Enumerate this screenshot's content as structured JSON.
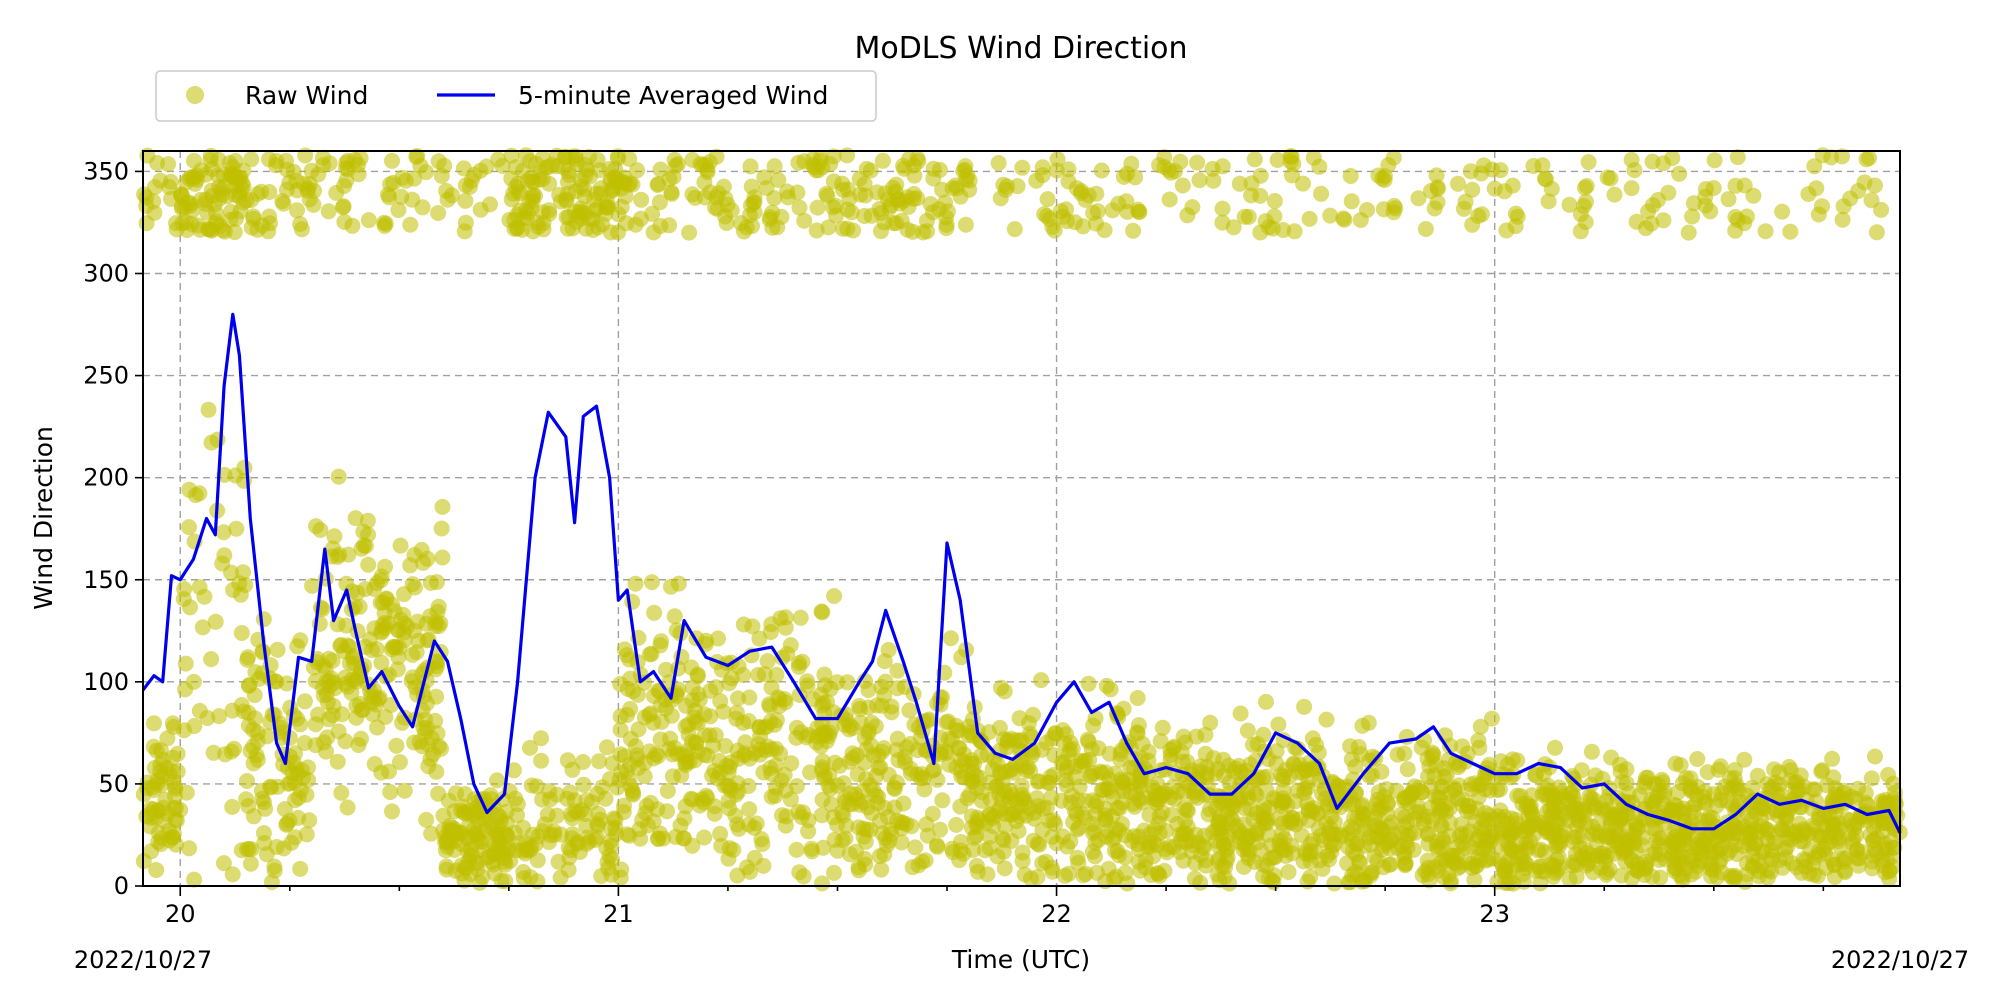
{
  "chart_data": {
    "type": "scatter",
    "title": "MoDLS Wind Direction",
    "xlabel": "Time (UTC)",
    "ylabel": "Wind Direction",
    "xlim": [
      19.915,
      23.925
    ],
    "ylim": [
      0,
      360
    ],
    "x_tick_values": [
      20,
      21,
      22,
      23
    ],
    "x_tick_labels": [
      "20",
      "21",
      "22",
      "23"
    ],
    "x_minor_step": 0.25,
    "y_ticks": [
      0,
      50,
      100,
      150,
      200,
      250,
      300,
      350
    ],
    "date_left": "2022/10/27",
    "date_right": "2022/10/27",
    "grid": true,
    "legend": {
      "placement": "top-left, outside above axes",
      "ncol": 2
    },
    "colors": {
      "raw": "#bfbf00",
      "avg": "#0000ee"
    },
    "series": [
      {
        "name": "Raw Wind",
        "kind": "scatter",
        "regimes": [
          {
            "x": [
              19.915,
              20.0
            ],
            "low_center": 40,
            "low_spread": 40,
            "high_frac": 0.25
          },
          {
            "x": [
              20.0,
              20.15
            ],
            "low_center": 130,
            "low_spread": 110,
            "high_frac": 0.55
          },
          {
            "x": [
              20.15,
              20.3
            ],
            "low_center": 60,
            "low_spread": 60,
            "high_frac": 0.3
          },
          {
            "x": [
              20.3,
              20.6
            ],
            "low_center": 110,
            "low_spread": 70,
            "high_frac": 0.15
          },
          {
            "x": [
              20.6,
              20.75
            ],
            "low_center": 25,
            "low_spread": 25,
            "high_frac": 0.15
          },
          {
            "x": [
              20.75,
              21.0
            ],
            "low_center": 30,
            "low_spread": 35,
            "high_frac": 0.55
          },
          {
            "x": [
              21.0,
              21.5
            ],
            "low_center": 70,
            "low_spread": 65,
            "high_frac": 0.2
          },
          {
            "x": [
              21.5,
              21.8
            ],
            "low_center": 55,
            "low_spread": 55,
            "high_frac": 0.25
          },
          {
            "x": [
              21.8,
              22.2
            ],
            "low_center": 45,
            "low_spread": 45,
            "high_frac": 0.15
          },
          {
            "x": [
              22.2,
              23.0
            ],
            "low_center": 35,
            "low_spread": 40,
            "high_frac": 0.12
          },
          {
            "x": [
              23.0,
              23.925
            ],
            "low_center": 28,
            "low_spread": 32,
            "high_frac": 0.1
          }
        ]
      },
      {
        "name": "5-minute Averaged Wind",
        "kind": "line",
        "x": [
          19.915,
          19.94,
          19.96,
          19.98,
          20.0,
          20.03,
          20.06,
          20.08,
          20.1,
          20.12,
          20.135,
          20.16,
          20.19,
          20.22,
          20.24,
          20.27,
          20.3,
          20.33,
          20.35,
          20.38,
          20.4,
          20.43,
          20.46,
          20.5,
          20.53,
          20.58,
          20.61,
          20.64,
          20.67,
          20.7,
          20.74,
          20.77,
          20.81,
          20.84,
          20.88,
          20.9,
          20.92,
          20.95,
          20.98,
          21.0,
          21.02,
          21.05,
          21.08,
          21.12,
          21.15,
          21.2,
          21.25,
          21.3,
          21.35,
          21.4,
          21.45,
          21.5,
          21.55,
          21.58,
          21.61,
          21.65,
          21.68,
          21.72,
          21.75,
          21.78,
          21.82,
          21.86,
          21.9,
          21.95,
          22.0,
          22.04,
          22.08,
          22.12,
          22.16,
          22.2,
          22.25,
          22.3,
          22.35,
          22.4,
          22.45,
          22.5,
          22.55,
          22.6,
          22.64,
          22.7,
          22.76,
          22.82,
          22.86,
          22.9,
          22.95,
          23.0,
          23.05,
          23.1,
          23.15,
          23.2,
          23.25,
          23.3,
          23.35,
          23.4,
          23.45,
          23.5,
          23.55,
          23.6,
          23.65,
          23.7,
          23.75,
          23.8,
          23.85,
          23.9,
          23.925
        ],
        "values": [
          96,
          103,
          100,
          152,
          150,
          160,
          180,
          172,
          245,
          280,
          260,
          180,
          120,
          70,
          60,
          112,
          110,
          165,
          130,
          145,
          125,
          97,
          105,
          88,
          78,
          120,
          110,
          82,
          50,
          36,
          45,
          100,
          200,
          232,
          220,
          178,
          230,
          235,
          200,
          140,
          145,
          100,
          105,
          92,
          130,
          112,
          108,
          115,
          117,
          100,
          82,
          82,
          100,
          110,
          135,
          110,
          90,
          60,
          168,
          140,
          75,
          65,
          62,
          70,
          90,
          100,
          85,
          90,
          70,
          55,
          58,
          55,
          45,
          45,
          55,
          75,
          70,
          60,
          38,
          55,
          70,
          72,
          78,
          65,
          60,
          55,
          55,
          60,
          58,
          48,
          50,
          40,
          35,
          32,
          28,
          28,
          35,
          45,
          40,
          42,
          38,
          40,
          35,
          37,
          26
        ]
      }
    ]
  }
}
